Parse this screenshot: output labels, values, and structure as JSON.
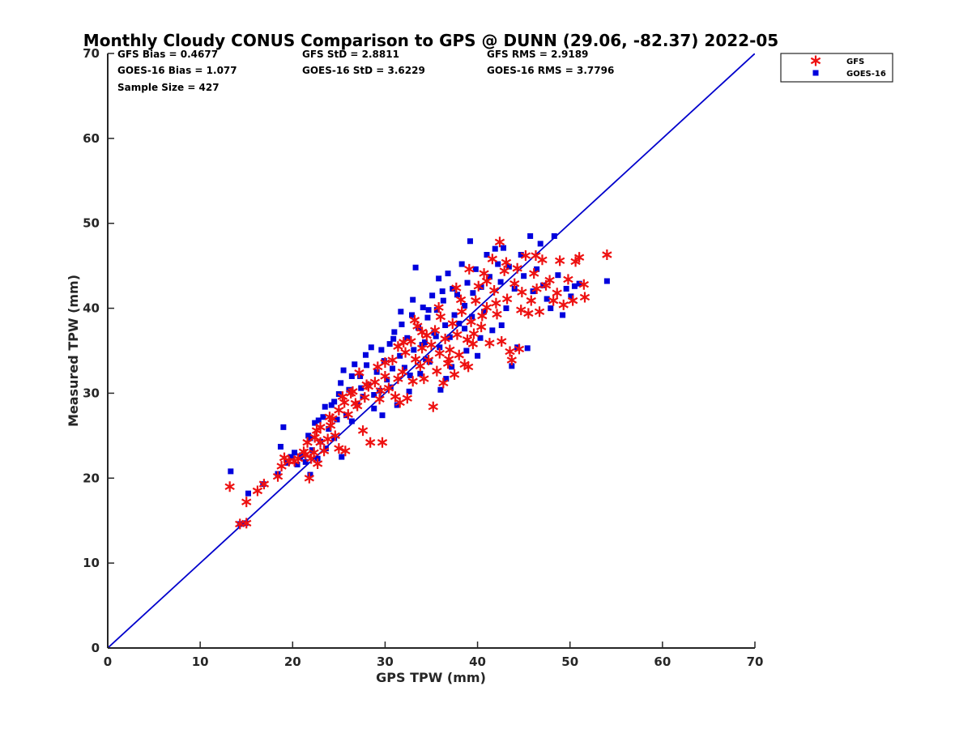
{
  "chart_data": {
    "type": "scatter",
    "title": "Monthly Cloudy CONUS Comparison to GPS @ DUNN (29.06, -82.37) 2022-05",
    "xlabel": "GPS TPW (mm)",
    "ylabel": "Measured TPW (mm)",
    "xlim": [
      0,
      70
    ],
    "ylim": [
      0,
      70
    ],
    "xticks": [
      "0",
      "10",
      "20",
      "30",
      "40",
      "50",
      "60",
      "70"
    ],
    "yticks": [
      "0",
      "10",
      "20",
      "30",
      "40",
      "50",
      "60",
      "70"
    ],
    "grid": false,
    "legend_position": "top-right",
    "stats": {
      "gfs_bias": "GFS Bias = 0.4677",
      "goes_bias": "GOES-16 Bias = 1.077",
      "sample_size": "Sample Size = 427",
      "gfs_std": "GFS StD = 2.8811",
      "goes_std": "GOES-16 StD = 3.6229",
      "gfs_rms": "GFS RMS = 2.9189",
      "goes_rms": "GOES-16 RMS = 3.7796"
    },
    "reference_line": {
      "x": [
        0,
        70
      ],
      "y": [
        0,
        70
      ],
      "color": "#0000cc"
    },
    "series": [
      {
        "name": "GFS",
        "marker": "asterisk",
        "color": "#ee1111",
        "points": [
          [
            13.2,
            19.0
          ],
          [
            14.3,
            14.6
          ],
          [
            15.0,
            14.7
          ],
          [
            15.0,
            17.2
          ],
          [
            16.2,
            18.5
          ],
          [
            16.9,
            19.3
          ],
          [
            18.4,
            20.2
          ],
          [
            18.8,
            21.4
          ],
          [
            19.1,
            22.4
          ],
          [
            19.6,
            22.0
          ],
          [
            20.6,
            22.3
          ],
          [
            21.2,
            23.1
          ],
          [
            21.6,
            24.2
          ],
          [
            21.8,
            20.0
          ],
          [
            22.0,
            22.3
          ],
          [
            22.3,
            23.0
          ],
          [
            22.6,
            25.6
          ],
          [
            22.7,
            21.7
          ],
          [
            23.0,
            24.2
          ],
          [
            23.4,
            23.2
          ],
          [
            23.8,
            24.6
          ],
          [
            24.1,
            26.2
          ],
          [
            24.3,
            27.0
          ],
          [
            24.6,
            25.0
          ],
          [
            25.0,
            28.0
          ],
          [
            25.0,
            23.5
          ],
          [
            25.4,
            29.6
          ],
          [
            25.7,
            23.2
          ],
          [
            26.0,
            27.5
          ],
          [
            26.3,
            30.0
          ],
          [
            26.8,
            28.8
          ],
          [
            27.2,
            32.4
          ],
          [
            27.6,
            25.6
          ],
          [
            27.8,
            29.5
          ],
          [
            28.2,
            30.8
          ],
          [
            28.4,
            24.2
          ],
          [
            28.9,
            31.3
          ],
          [
            29.2,
            33.1
          ],
          [
            29.4,
            29.3
          ],
          [
            29.7,
            24.2
          ],
          [
            30.0,
            32.0
          ],
          [
            30.4,
            30.6
          ],
          [
            30.8,
            33.9
          ],
          [
            31.1,
            29.6
          ],
          [
            31.4,
            35.5
          ],
          [
            31.6,
            28.9
          ],
          [
            31.9,
            32.5
          ],
          [
            32.2,
            34.8
          ],
          [
            32.4,
            29.4
          ],
          [
            32.8,
            36.1
          ],
          [
            33.0,
            31.4
          ],
          [
            33.3,
            34.0
          ],
          [
            33.5,
            37.9
          ],
          [
            33.8,
            33.2
          ],
          [
            34.0,
            35.3
          ],
          [
            34.2,
            31.7
          ],
          [
            34.5,
            36.8
          ],
          [
            34.7,
            33.9
          ],
          [
            35.0,
            35.7
          ],
          [
            35.2,
            28.4
          ],
          [
            35.4,
            37.4
          ],
          [
            35.6,
            32.6
          ],
          [
            35.9,
            34.7
          ],
          [
            36.0,
            39.0
          ],
          [
            36.3,
            31.2
          ],
          [
            36.5,
            36.4
          ],
          [
            36.8,
            33.5
          ],
          [
            37.0,
            35.1
          ],
          [
            37.3,
            38.2
          ],
          [
            37.5,
            32.2
          ],
          [
            37.8,
            36.9
          ],
          [
            38.0,
            34.5
          ],
          [
            38.3,
            39.6
          ],
          [
            38.6,
            33.4
          ],
          [
            38.9,
            36.3
          ],
          [
            39.1,
            44.6
          ],
          [
            39.3,
            38.4
          ],
          [
            39.5,
            35.8
          ],
          [
            39.8,
            40.9
          ],
          [
            40.1,
            42.6
          ],
          [
            40.4,
            37.8
          ],
          [
            40.7,
            44.1
          ],
          [
            41.0,
            40.1
          ],
          [
            41.3,
            35.9
          ],
          [
            41.6,
            45.8
          ],
          [
            41.8,
            42.1
          ],
          [
            42.1,
            39.3
          ],
          [
            42.4,
            47.8
          ],
          [
            42.6,
            36.1
          ],
          [
            42.9,
            44.4
          ],
          [
            43.2,
            41.1
          ],
          [
            43.5,
            34.9
          ],
          [
            43.7,
            33.9
          ],
          [
            44.0,
            42.9
          ],
          [
            44.3,
            44.7
          ],
          [
            44.5,
            35.2
          ],
          [
            44.8,
            41.9
          ],
          [
            45.2,
            46.2
          ],
          [
            45.5,
            39.4
          ],
          [
            45.8,
            40.9
          ],
          [
            46.1,
            44.1
          ],
          [
            46.4,
            42.3
          ],
          [
            46.7,
            39.6
          ],
          [
            47.0,
            45.7
          ],
          [
            47.4,
            42.7
          ],
          [
            47.8,
            43.3
          ],
          [
            48.2,
            40.9
          ],
          [
            48.6,
            41.8
          ],
          [
            48.9,
            45.6
          ],
          [
            49.3,
            40.4
          ],
          [
            49.8,
            43.4
          ],
          [
            50.3,
            40.9
          ],
          [
            50.6,
            45.5
          ],
          [
            51.0,
            46.0
          ],
          [
            51.6,
            41.3
          ],
          [
            51.5,
            42.8
          ],
          [
            54.0,
            46.3
          ],
          [
            40.5,
            39.1
          ],
          [
            39.0,
            33.1
          ],
          [
            36.9,
            34.0
          ],
          [
            41.0,
            43.2
          ],
          [
            43.1,
            45.4
          ],
          [
            38.2,
            41.0
          ],
          [
            34.0,
            37.2
          ],
          [
            32.0,
            36.0
          ],
          [
            30.0,
            33.6
          ],
          [
            28.0,
            31.0
          ],
          [
            26.5,
            30.2
          ],
          [
            25.6,
            28.9
          ],
          [
            24.0,
            27.2
          ],
          [
            23.0,
            26.0
          ],
          [
            22.4,
            24.8
          ],
          [
            21.4,
            22.8
          ],
          [
            20.2,
            22.0
          ],
          [
            33.2,
            38.6
          ],
          [
            35.8,
            40.1
          ],
          [
            37.7,
            42.4
          ],
          [
            44.7,
            39.8
          ],
          [
            46.3,
            46.2
          ],
          [
            39.6,
            37.0
          ],
          [
            42.0,
            40.6
          ],
          [
            31.4,
            31.7
          ],
          [
            29.5,
            30.3
          ],
          [
            27.0,
            28.5
          ]
        ]
      },
      {
        "name": "GOES-16",
        "marker": "square",
        "color": "#0000dd",
        "points": [
          [
            13.3,
            20.8
          ],
          [
            14.3,
            14.6
          ],
          [
            14.9,
            14.7
          ],
          [
            15.2,
            18.2
          ],
          [
            16.8,
            19.3
          ],
          [
            18.4,
            20.5
          ],
          [
            18.7,
            23.7
          ],
          [
            19.0,
            26.0
          ],
          [
            19.4,
            21.8
          ],
          [
            19.8,
            22.5
          ],
          [
            20.2,
            23.0
          ],
          [
            20.5,
            21.6
          ],
          [
            21.0,
            22.7
          ],
          [
            21.4,
            21.9
          ],
          [
            21.7,
            25.0
          ],
          [
            21.9,
            20.4
          ],
          [
            22.1,
            23.3
          ],
          [
            22.4,
            26.5
          ],
          [
            22.7,
            22.3
          ],
          [
            23.0,
            24.3
          ],
          [
            23.3,
            27.2
          ],
          [
            23.6,
            23.5
          ],
          [
            23.9,
            25.8
          ],
          [
            24.2,
            28.6
          ],
          [
            24.5,
            24.7
          ],
          [
            24.8,
            26.9
          ],
          [
            25.0,
            29.9
          ],
          [
            25.3,
            22.5
          ],
          [
            25.5,
            32.7
          ],
          [
            25.8,
            27.4
          ],
          [
            26.1,
            30.4
          ],
          [
            26.4,
            26.7
          ],
          [
            26.7,
            33.4
          ],
          [
            27.0,
            28.7
          ],
          [
            27.3,
            32.0
          ],
          [
            27.6,
            29.6
          ],
          [
            27.9,
            34.5
          ],
          [
            28.2,
            31.0
          ],
          [
            28.5,
            35.4
          ],
          [
            28.8,
            28.2
          ],
          [
            29.1,
            32.5
          ],
          [
            29.4,
            30.3
          ],
          [
            29.7,
            27.4
          ],
          [
            29.9,
            33.8
          ],
          [
            30.2,
            31.6
          ],
          [
            30.5,
            35.8
          ],
          [
            30.8,
            32.9
          ],
          [
            31.0,
            37.2
          ],
          [
            31.3,
            28.6
          ],
          [
            31.6,
            34.4
          ],
          [
            31.8,
            38.1
          ],
          [
            32.1,
            33.0
          ],
          [
            32.4,
            36.5
          ],
          [
            32.6,
            30.2
          ],
          [
            32.9,
            39.2
          ],
          [
            33.1,
            35.1
          ],
          [
            33.3,
            44.8
          ],
          [
            33.6,
            37.7
          ],
          [
            33.8,
            32.3
          ],
          [
            34.1,
            40.1
          ],
          [
            34.3,
            36.0
          ],
          [
            34.6,
            38.9
          ],
          [
            34.8,
            33.7
          ],
          [
            35.1,
            41.5
          ],
          [
            35.3,
            37.1
          ],
          [
            35.6,
            39.8
          ],
          [
            35.8,
            43.5
          ],
          [
            36.0,
            30.4
          ],
          [
            36.3,
            40.9
          ],
          [
            36.5,
            38.0
          ],
          [
            36.8,
            44.1
          ],
          [
            37.0,
            36.6
          ],
          [
            37.3,
            42.3
          ],
          [
            37.5,
            39.2
          ],
          [
            37.8,
            41.6
          ],
          [
            38.0,
            38.2
          ],
          [
            38.3,
            45.2
          ],
          [
            38.6,
            40.3
          ],
          [
            38.9,
            43.0
          ],
          [
            39.2,
            47.9
          ],
          [
            39.5,
            41.8
          ],
          [
            39.8,
            44.6
          ],
          [
            40.0,
            34.4
          ],
          [
            40.4,
            42.5
          ],
          [
            40.7,
            39.6
          ],
          [
            41.0,
            46.3
          ],
          [
            41.3,
            43.7
          ],
          [
            41.6,
            37.4
          ],
          [
            41.9,
            47.0
          ],
          [
            42.2,
            45.2
          ],
          [
            42.5,
            43.1
          ],
          [
            42.8,
            47.1
          ],
          [
            43.1,
            40.0
          ],
          [
            43.4,
            44.9
          ],
          [
            43.7,
            33.2
          ],
          [
            44.0,
            42.3
          ],
          [
            44.3,
            35.4
          ],
          [
            44.7,
            46.3
          ],
          [
            45.0,
            43.8
          ],
          [
            45.4,
            35.3
          ],
          [
            45.7,
            48.5
          ],
          [
            46.0,
            42.0
          ],
          [
            46.4,
            44.6
          ],
          [
            46.8,
            47.6
          ],
          [
            47.1,
            42.7
          ],
          [
            47.5,
            41.1
          ],
          [
            47.9,
            40.0
          ],
          [
            48.3,
            48.5
          ],
          [
            48.7,
            43.9
          ],
          [
            49.2,
            39.2
          ],
          [
            49.6,
            42.3
          ],
          [
            50.1,
            41.4
          ],
          [
            50.5,
            42.6
          ],
          [
            51.0,
            42.9
          ],
          [
            54.0,
            43.2
          ],
          [
            36.2,
            42.0
          ],
          [
            34.7,
            39.8
          ],
          [
            33.0,
            41.0
          ],
          [
            31.7,
            39.6
          ],
          [
            30.9,
            36.4
          ],
          [
            29.6,
            35.1
          ],
          [
            28.0,
            33.3
          ],
          [
            27.4,
            30.6
          ],
          [
            26.4,
            32.0
          ],
          [
            25.2,
            31.2
          ],
          [
            24.5,
            29.0
          ],
          [
            23.5,
            28.4
          ],
          [
            22.8,
            26.8
          ],
          [
            21.9,
            24.7
          ],
          [
            20.8,
            22.5
          ],
          [
            35.5,
            36.7
          ],
          [
            37.2,
            33.1
          ],
          [
            38.8,
            35.0
          ],
          [
            40.3,
            36.5
          ],
          [
            42.6,
            38.0
          ],
          [
            39.4,
            39.0
          ],
          [
            36.6,
            31.7
          ],
          [
            34.4,
            34.0
          ],
          [
            32.7,
            32.1
          ],
          [
            30.6,
            30.7
          ],
          [
            28.8,
            29.8
          ],
          [
            34.0,
            35.7
          ],
          [
            35.9,
            35.4
          ],
          [
            38.6,
            37.6
          ]
        ]
      }
    ]
  }
}
